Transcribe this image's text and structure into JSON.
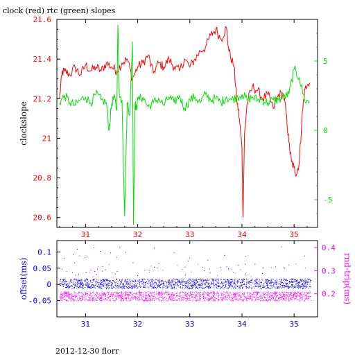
{
  "title": "clock (red) rtc (green) slopes",
  "footer": "2012-12-30 florr",
  "colors": {
    "red": "#ff0000",
    "green": "#00e000",
    "blue": "#0000ff",
    "magenta": "#ff00ff",
    "axis": "#000000"
  },
  "chart_data": [
    {
      "type": "line",
      "xlim": [
        30.45,
        35.45
      ],
      "x_ticks": [
        "31",
        "32",
        "33",
        "34",
        "35"
      ],
      "ylabel": "clockslope",
      "ylim": [
        20.55,
        21.6
      ],
      "y_ticks": [
        "20.6",
        "20.8",
        "21",
        "21.2",
        "21.4",
        "21.6"
      ],
      "y2lim": [
        -7,
        8
      ],
      "y2_ticks": [
        "-5",
        "0",
        "5"
      ],
      "grid": false,
      "series": [
        {
          "name": "clock",
          "color": "red",
          "axis": "left",
          "x": [
            30.5,
            30.55,
            30.6,
            30.7,
            30.8,
            30.9,
            31.0,
            31.1,
            31.2,
            31.3,
            31.4,
            31.5,
            31.6,
            31.7,
            31.8,
            31.9,
            32.0,
            32.1,
            32.2,
            32.3,
            32.4,
            32.5,
            32.6,
            32.7,
            32.8,
            32.9,
            33.0,
            33.1,
            33.2,
            33.3,
            33.4,
            33.5,
            33.6,
            33.7,
            33.75,
            33.85,
            33.9,
            33.95,
            34.0,
            34.02,
            34.05,
            34.1,
            34.2,
            34.3,
            34.4,
            34.5,
            34.6,
            34.7,
            34.8,
            34.85,
            34.9,
            34.95,
            35.0,
            35.05,
            35.1,
            35.15,
            35.2,
            35.3
          ],
          "y": [
            21.2,
            21.33,
            21.34,
            21.32,
            21.36,
            21.32,
            21.37,
            21.34,
            21.36,
            21.34,
            21.38,
            21.36,
            21.34,
            21.38,
            21.4,
            21.3,
            21.36,
            21.38,
            21.42,
            21.33,
            21.38,
            21.36,
            21.4,
            21.36,
            21.34,
            21.4,
            21.36,
            21.4,
            21.44,
            21.46,
            21.52,
            21.55,
            21.5,
            21.56,
            21.44,
            21.36,
            21.2,
            21.1,
            20.95,
            20.6,
            21.02,
            21.18,
            21.26,
            21.24,
            21.2,
            21.22,
            21.15,
            21.22,
            21.22,
            21.12,
            20.98,
            20.88,
            20.85,
            20.82,
            20.88,
            21.1,
            21.24,
            21.28
          ]
        },
        {
          "name": "rtc",
          "color": "green",
          "axis": "right",
          "x": [
            30.5,
            30.6,
            30.7,
            30.8,
            30.9,
            31.0,
            31.1,
            31.2,
            31.3,
            31.4,
            31.45,
            31.5,
            31.55,
            31.6,
            31.62,
            31.65,
            31.7,
            31.75,
            31.8,
            31.85,
            31.9,
            31.92,
            31.95,
            31.97,
            32.0,
            32.1,
            32.2,
            32.3,
            32.4,
            32.5,
            32.6,
            32.7,
            32.8,
            32.9,
            33.0,
            33.1,
            33.2,
            33.3,
            33.4,
            33.5,
            33.6,
            33.7,
            33.8,
            33.9,
            34.0,
            34.1,
            34.2,
            34.3,
            34.4,
            34.5,
            34.6,
            34.7,
            34.8,
            34.9,
            35.0,
            35.1,
            35.2,
            35.3
          ],
          "y": [
            2.0,
            2.5,
            2.0,
            1.8,
            2.2,
            2.4,
            2.0,
            2.6,
            2.2,
            2.0,
            0.0,
            1.9,
            2.4,
            1.5,
            7.6,
            2.4,
            2.2,
            -6.2,
            2.0,
            1.2,
            6.4,
            -6.8,
            2.0,
            1.5,
            2.2,
            2.4,
            1.7,
            2.0,
            2.3,
            1.8,
            2.4,
            2.0,
            2.5,
            1.6,
            2.2,
            2.4,
            2.0,
            2.6,
            2.2,
            2.3,
            2.0,
            2.4,
            2.2,
            2.4,
            2.6,
            2.2,
            2.4,
            2.2,
            2.2,
            2.0,
            2.2,
            2.2,
            2.4,
            2.6,
            4.4,
            3.8,
            2.2,
            2.0
          ]
        }
      ]
    },
    {
      "type": "scatter",
      "xlim": [
        30.45,
        35.45
      ],
      "x_ticks": [
        "31",
        "32",
        "33",
        "34",
        "35"
      ],
      "ylabel": "offset(ms)",
      "ylim": [
        -0.1,
        0.135
      ],
      "y_ticks": [
        "-0.05",
        "0",
        "0.05",
        "0.1"
      ],
      "y2label": "rnd-trip(ms)",
      "y2lim": [
        0.1,
        0.43
      ],
      "y2_ticks": [
        "0.2",
        "0.3",
        "0.4"
      ],
      "x_range": [
        30.5,
        35.32
      ],
      "series": [
        {
          "name": "offset",
          "color": "blue",
          "axis": "left",
          "band": [
            -0.012,
            0.018
          ],
          "outliers": [
            0.1,
            0.12,
            0.07,
            0.06,
            0.05,
            0.04
          ]
        },
        {
          "name": "rnd-trip",
          "color": "magenta",
          "axis": "right",
          "band": [
            0.17,
            0.21
          ],
          "outliers": [
            0.41,
            0.38,
            0.33,
            0.3,
            0.28,
            0.25
          ]
        }
      ]
    }
  ]
}
